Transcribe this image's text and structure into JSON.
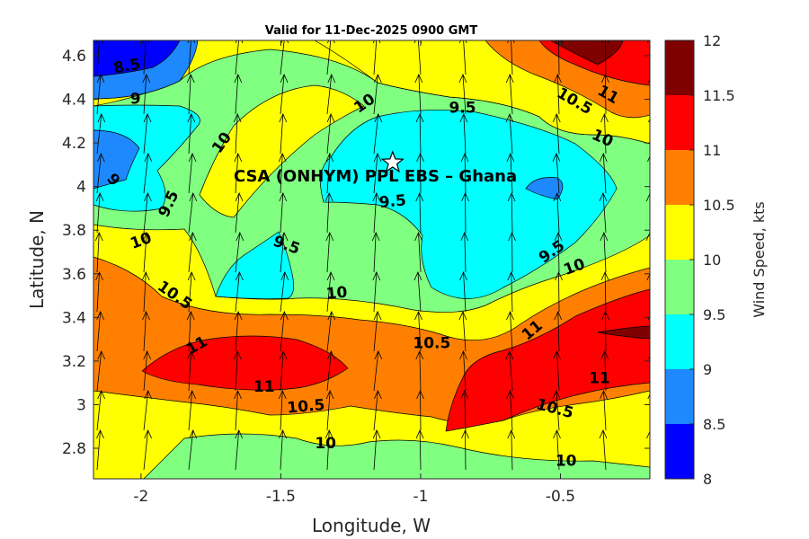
{
  "chart_data": {
    "type": "filled-contour",
    "title": "Valid for 11-Dec-2025 0900 GMT",
    "xlabel": "Longitude, W",
    "ylabel": "Latitude, N",
    "xlim": [
      -2.17,
      -0.18
    ],
    "ylim": [
      2.66,
      4.67
    ],
    "xticks": [
      -2,
      -1.5,
      -1,
      -0.5
    ],
    "xtick_labels": [
      "-2",
      "-1.5",
      "-1",
      "-0.5"
    ],
    "yticks": [
      2.8,
      3,
      3.2,
      3.4,
      3.6,
      3.8,
      4,
      4.2,
      4.4,
      4.6
    ],
    "ytick_labels": [
      "2.8",
      "3",
      "3.2",
      "3.4",
      "3.6",
      "3.8",
      "4",
      "4.2",
      "4.4",
      "4.6"
    ],
    "site": {
      "name": "CSA (ONHYM) PPL EBS  – Ghana",
      "lon": -1.1,
      "lat": 4.11,
      "marker": "star"
    },
    "colorbar": {
      "label": "Wind Speed, kts",
      "levels": [
        8,
        8.5,
        9,
        9.5,
        10,
        10.5,
        11,
        11.5,
        12
      ],
      "tick_labels": [
        "8",
        "8.5",
        "9",
        "9.5",
        "10",
        "10.5",
        "11",
        "11.5",
        "12"
      ],
      "colors": [
        "#0000ff",
        "#1e88ff",
        "#00ffff",
        "#80ff80",
        "#ffff00",
        "#ff8000",
        "#ff0000",
        "#800000"
      ]
    },
    "contour_labels": [
      {
        "text": "8.5",
        "lon": -2.05,
        "lat": 4.55,
        "angle": -10
      },
      {
        "text": "9",
        "lon": -2.02,
        "lat": 4.4,
        "angle": 0
      },
      {
        "text": "9",
        "lon": -2.1,
        "lat": 4.03,
        "angle": 50
      },
      {
        "text": "9.5",
        "lon": -1.9,
        "lat": 3.92,
        "angle": -65
      },
      {
        "text": "10",
        "lon": -1.71,
        "lat": 4.2,
        "angle": -55
      },
      {
        "text": "10",
        "lon": -1.2,
        "lat": 4.38,
        "angle": -35
      },
      {
        "text": "9.5",
        "lon": -0.85,
        "lat": 4.36,
        "angle": 0
      },
      {
        "text": "10.5",
        "lon": -0.45,
        "lat": 4.39,
        "angle": 30
      },
      {
        "text": "11",
        "lon": -0.33,
        "lat": 4.42,
        "angle": 30
      },
      {
        "text": "10",
        "lon": -0.35,
        "lat": 4.22,
        "angle": 25
      },
      {
        "text": "9.5",
        "lon": -1.1,
        "lat": 3.93,
        "angle": -5
      },
      {
        "text": "9.5",
        "lon": -1.48,
        "lat": 3.73,
        "angle": 20
      },
      {
        "text": "10",
        "lon": -2.0,
        "lat": 3.75,
        "angle": -20
      },
      {
        "text": "10.5",
        "lon": -1.88,
        "lat": 3.5,
        "angle": 35
      },
      {
        "text": "10",
        "lon": -1.3,
        "lat": 3.51,
        "angle": -5
      },
      {
        "text": "9.5",
        "lon": -0.53,
        "lat": 3.7,
        "angle": -35
      },
      {
        "text": "10",
        "lon": -0.45,
        "lat": 3.63,
        "angle": -20
      },
      {
        "text": "11",
        "lon": -1.8,
        "lat": 3.27,
        "angle": -30
      },
      {
        "text": "10.5",
        "lon": -0.96,
        "lat": 3.28,
        "angle": 0
      },
      {
        "text": "11",
        "lon": -0.6,
        "lat": 3.34,
        "angle": -40
      },
      {
        "text": "11",
        "lon": -1.56,
        "lat": 3.08,
        "angle": 0
      },
      {
        "text": "11",
        "lon": -0.36,
        "lat": 3.12,
        "angle": 0
      },
      {
        "text": "10.5",
        "lon": -1.41,
        "lat": 2.99,
        "angle": -5
      },
      {
        "text": "10.5",
        "lon": -0.52,
        "lat": 2.98,
        "angle": 15
      },
      {
        "text": "10",
        "lon": -1.34,
        "lat": 2.82,
        "angle": 0
      },
      {
        "text": "10",
        "lon": -0.48,
        "lat": 2.74,
        "angle": 0
      }
    ]
  }
}
